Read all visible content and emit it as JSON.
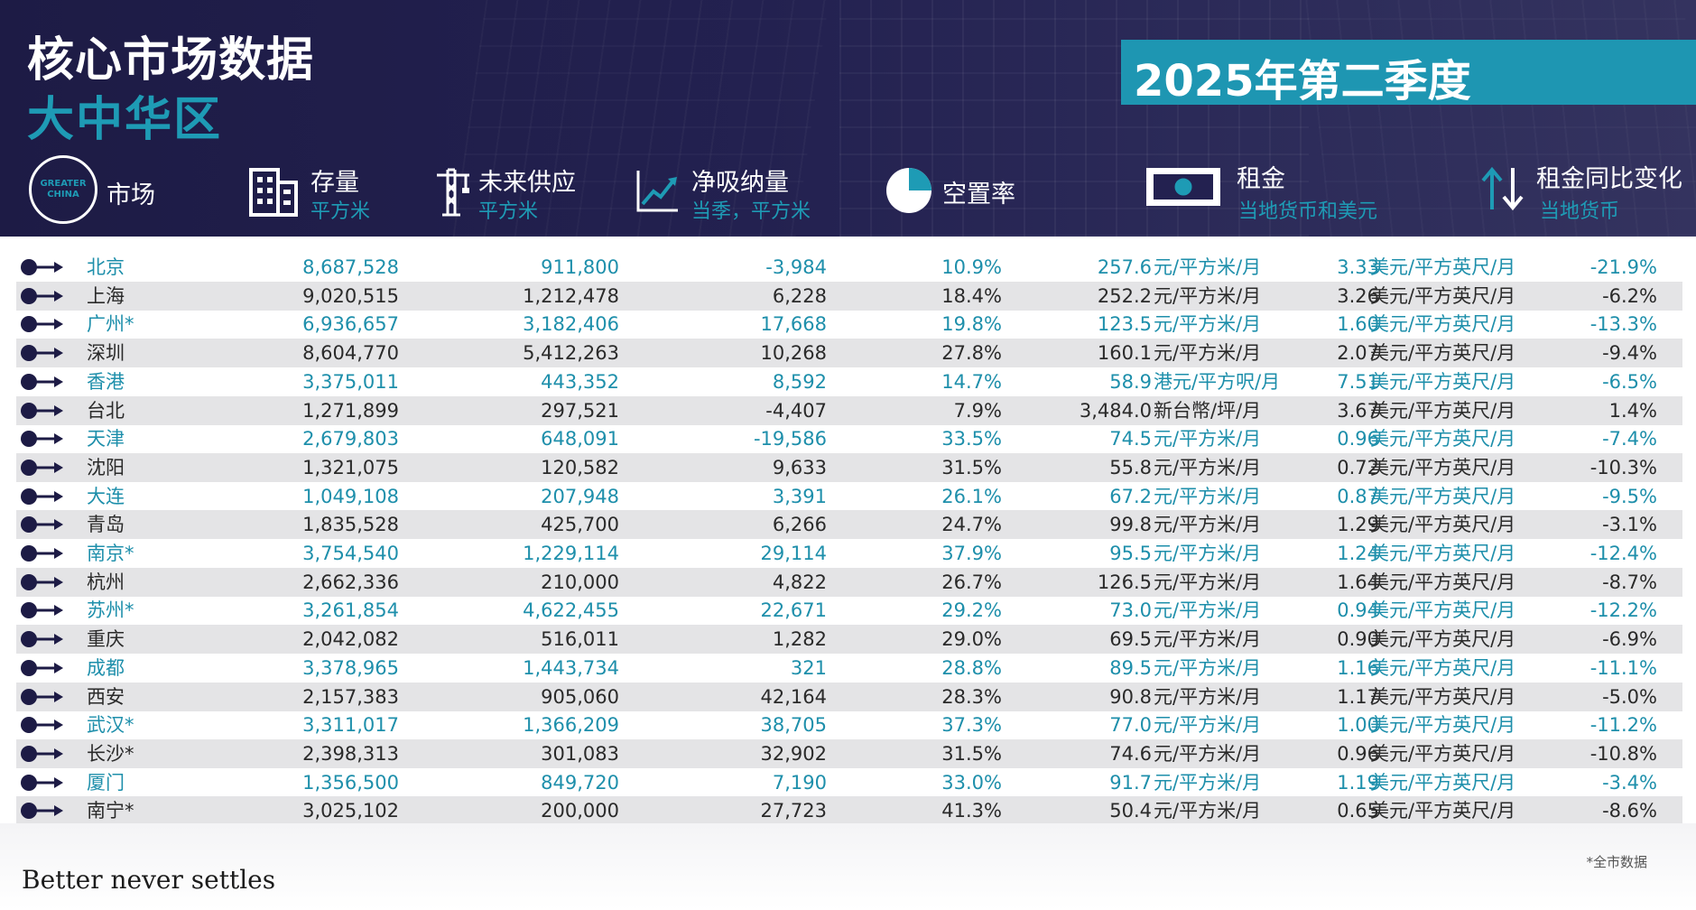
{
  "header": {
    "title": "核心市场数据",
    "subtitle": "大中华区",
    "quarter": "2025年第二季度",
    "logo_text": "GREATER CHINA",
    "columns": {
      "market": {
        "label": "市场"
      },
      "stock": {
        "label": "存量",
        "unit": "平方米"
      },
      "future_supply": {
        "label": "未来供应",
        "unit": "平方米"
      },
      "net_absorption": {
        "label": "净吸纳量",
        "unit": "当季，平方米"
      },
      "vacancy": {
        "label": "空置率"
      },
      "rent": {
        "label": "租金",
        "unit": "当地货币和美元"
      },
      "rent_change": {
        "label": "租金同比变化",
        "unit": "当地货币"
      }
    }
  },
  "colors": {
    "header_bg": "#232150",
    "accent": "#1e96b2",
    "row_shade": "#e4e4e6",
    "blue_text": "#1e8fab"
  },
  "icons": [
    "arrow-right-icon",
    "building-icon",
    "crane-icon",
    "trend-chart-icon",
    "pie-icon",
    "banknote-icon",
    "up-down-arrows-icon"
  ],
  "rows": [
    {
      "market": "北京",
      "stock": "8,687,528",
      "supply": "911,800",
      "absorption": "-3,984",
      "vacancy": "10.9%",
      "rent_local": "257.6",
      "unit_local": "元/平方米/月",
      "rent_usd": "3.33",
      "unit_usd": "美元/平方英尺/月",
      "change": "-21.9%"
    },
    {
      "market": "上海",
      "stock": "9,020,515",
      "supply": "1,212,478",
      "absorption": "6,228",
      "vacancy": "18.4%",
      "rent_local": "252.2",
      "unit_local": "元/平方米/月",
      "rent_usd": "3.26",
      "unit_usd": "美元/平方英尺/月",
      "change": "-6.2%"
    },
    {
      "market": "广州*",
      "stock": "6,936,657",
      "supply": "3,182,406",
      "absorption": "17,668",
      "vacancy": "19.8%",
      "rent_local": "123.5",
      "unit_local": "元/平方米/月",
      "rent_usd": "1.60",
      "unit_usd": "美元/平方英尺/月",
      "change": "-13.3%"
    },
    {
      "market": "深圳",
      "stock": "8,604,770",
      "supply": "5,412,263",
      "absorption": "10,268",
      "vacancy": "27.8%",
      "rent_local": "160.1",
      "unit_local": "元/平方米/月",
      "rent_usd": "2.07",
      "unit_usd": "美元/平方英尺/月",
      "change": "-9.4%"
    },
    {
      "market": "香港",
      "stock": "3,375,011",
      "supply": "443,352",
      "absorption": "8,592",
      "vacancy": "14.7%",
      "rent_local": "58.9",
      "unit_local": "港元/平方呎/月",
      "rent_usd": "7.51",
      "unit_usd": "美元/平方英尺/月",
      "change": "-6.5%"
    },
    {
      "market": "台北",
      "stock": "1,271,899",
      "supply": "297,521",
      "absorption": "-4,407",
      "vacancy": "7.9%",
      "rent_local": "3,484.0",
      "unit_local": "新台幣/坪/月",
      "rent_usd": "3.67",
      "unit_usd": "美元/平方英尺/月",
      "change": "1.4%"
    },
    {
      "market": "天津",
      "stock": "2,679,803",
      "supply": "648,091",
      "absorption": "-19,586",
      "vacancy": "33.5%",
      "rent_local": "74.5",
      "unit_local": "元/平方米/月",
      "rent_usd": "0.96",
      "unit_usd": "美元/平方英尺/月",
      "change": "-7.4%"
    },
    {
      "market": "沈阳",
      "stock": "1,321,075",
      "supply": "120,582",
      "absorption": "9,633",
      "vacancy": "31.5%",
      "rent_local": "55.8",
      "unit_local": "元/平方米/月",
      "rent_usd": "0.72",
      "unit_usd": "美元/平方英尺/月",
      "change": "-10.3%"
    },
    {
      "market": "大连",
      "stock": "1,049,108",
      "supply": "207,948",
      "absorption": "3,391",
      "vacancy": "26.1%",
      "rent_local": "67.2",
      "unit_local": "元/平方米/月",
      "rent_usd": "0.87",
      "unit_usd": "美元/平方英尺/月",
      "change": "-9.5%"
    },
    {
      "market": "青岛",
      "stock": "1,835,528",
      "supply": "425,700",
      "absorption": "6,266",
      "vacancy": "24.7%",
      "rent_local": "99.8",
      "unit_local": "元/平方米/月",
      "rent_usd": "1.29",
      "unit_usd": "美元/平方英尺/月",
      "change": "-3.1%"
    },
    {
      "market": "南京*",
      "stock": "3,754,540",
      "supply": "1,229,114",
      "absorption": "29,114",
      "vacancy": "37.9%",
      "rent_local": "95.5",
      "unit_local": "元/平方米/月",
      "rent_usd": "1.24",
      "unit_usd": "美元/平方英尺/月",
      "change": "-12.4%"
    },
    {
      "market": "杭州",
      "stock": "2,662,336",
      "supply": "210,000",
      "absorption": "4,822",
      "vacancy": "26.7%",
      "rent_local": "126.5",
      "unit_local": "元/平方米/月",
      "rent_usd": "1.64",
      "unit_usd": "美元/平方英尺/月",
      "change": "-8.7%"
    },
    {
      "market": "苏州*",
      "stock": "3,261,854",
      "supply": "4,622,455",
      "absorption": "22,671",
      "vacancy": "29.2%",
      "rent_local": "73.0",
      "unit_local": "元/平方米/月",
      "rent_usd": "0.94",
      "unit_usd": "美元/平方英尺/月",
      "change": "-12.2%"
    },
    {
      "market": "重庆",
      "stock": "2,042,082",
      "supply": "516,011",
      "absorption": "1,282",
      "vacancy": "29.0%",
      "rent_local": "69.5",
      "unit_local": "元/平方米/月",
      "rent_usd": "0.90",
      "unit_usd": "美元/平方英尺/月",
      "change": "-6.9%"
    },
    {
      "market": "成都",
      "stock": "3,378,965",
      "supply": "1,443,734",
      "absorption": "321",
      "vacancy": "28.8%",
      "rent_local": "89.5",
      "unit_local": "元/平方米/月",
      "rent_usd": "1.16",
      "unit_usd": "美元/平方英尺/月",
      "change": "-11.1%"
    },
    {
      "market": "西安",
      "stock": "2,157,383",
      "supply": "905,060",
      "absorption": "42,164",
      "vacancy": "28.3%",
      "rent_local": "90.8",
      "unit_local": "元/平方米/月",
      "rent_usd": "1.17",
      "unit_usd": "美元/平方英尺/月",
      "change": "-5.0%"
    },
    {
      "market": "武汉*",
      "stock": "3,311,017",
      "supply": "1,366,209",
      "absorption": "38,705",
      "vacancy": "37.3%",
      "rent_local": "77.0",
      "unit_local": "元/平方米/月",
      "rent_usd": "1.00",
      "unit_usd": "美元/平方英尺/月",
      "change": "-11.2%"
    },
    {
      "market": "长沙*",
      "stock": "2,398,313",
      "supply": "301,083",
      "absorption": "32,902",
      "vacancy": "31.5%",
      "rent_local": "74.6",
      "unit_local": "元/平方米/月",
      "rent_usd": "0.96",
      "unit_usd": "美元/平方英尺/月",
      "change": "-10.8%"
    },
    {
      "market": "厦门",
      "stock": "1,356,500",
      "supply": "849,720",
      "absorption": "7,190",
      "vacancy": "33.0%",
      "rent_local": "91.7",
      "unit_local": "元/平方米/月",
      "rent_usd": "1.19",
      "unit_usd": "美元/平方英尺/月",
      "change": "-3.4%"
    },
    {
      "market": "南宁*",
      "stock": "3,025,102",
      "supply": "200,000",
      "absorption": "27,723",
      "vacancy": "41.3%",
      "rent_local": "50.4",
      "unit_local": "元/平方米/月",
      "rent_usd": "0.65",
      "unit_usd": "美元/平方英尺/月",
      "change": "-8.6%"
    }
  ],
  "footer": {
    "tagline": "Better never settles",
    "note": "*全市数据"
  }
}
